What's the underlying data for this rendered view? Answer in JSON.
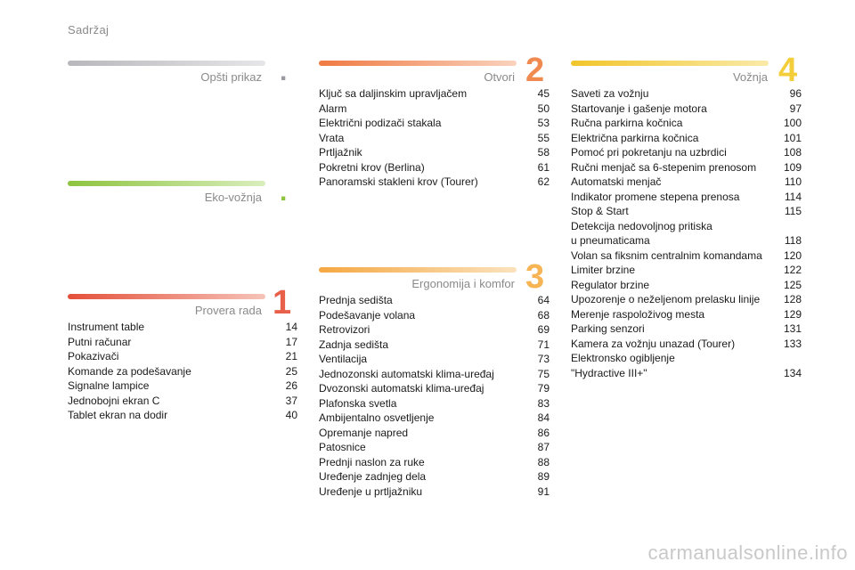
{
  "header": {
    "title": "Sadržaj"
  },
  "sections": {
    "opsti": {
      "title": "Opšti prikaz",
      "marker": "."
    },
    "eko": {
      "title": "Eko-vožnja",
      "marker": "."
    },
    "provera": {
      "title": "Provera rada",
      "number": "1",
      "items": [
        {
          "t": "Instrument table",
          "p": "14"
        },
        {
          "t": "Putni računar",
          "p": "17"
        },
        {
          "t": "Pokazivači",
          "p": "21"
        },
        {
          "t": "Komande za podešavanje",
          "p": "25"
        },
        {
          "t": "Signalne lampice",
          "p": "26"
        },
        {
          "t": "Jednobojni ekran C",
          "p": "37"
        },
        {
          "t": "Tablet ekran na dodir",
          "p": "40"
        }
      ]
    },
    "otvori": {
      "title": "Otvori",
      "number": "2",
      "items": [
        {
          "t": "Ključ sa daljinskim upravljačem",
          "p": "45"
        },
        {
          "t": "Alarm",
          "p": "50"
        },
        {
          "t": "Električni podizači stakala",
          "p": "53"
        },
        {
          "t": "Vrata",
          "p": "55"
        },
        {
          "t": "Prtljažnik",
          "p": "58"
        },
        {
          "t": "Pokretni krov (Berlina)",
          "p": "61"
        },
        {
          "t": "Panoramski stakleni krov (Tourer)",
          "p": "62"
        }
      ]
    },
    "ergonomija": {
      "title": "Ergonomija i komfor",
      "number": "3",
      "items": [
        {
          "t": "Prednja sedišta",
          "p": "64"
        },
        {
          "t": "Podešavanje volana",
          "p": "68"
        },
        {
          "t": "Retrovizori",
          "p": "69"
        },
        {
          "t": "Zadnja sedišta",
          "p": "71"
        },
        {
          "t": "Ventilacija",
          "p": "73"
        },
        {
          "t": "Jednozonski automatski klima-uređaj",
          "p": "75"
        },
        {
          "t": "Dvozonski automatski klima-uređaj",
          "p": "79"
        },
        {
          "t": "Plafonska svetla",
          "p": "83"
        },
        {
          "t": "Ambijentalno osvetljenje",
          "p": "84"
        },
        {
          "t": "Opremanje napred",
          "p": "86"
        },
        {
          "t": "Patosnice",
          "p": "87"
        },
        {
          "t": "Prednji naslon za ruke",
          "p": "88"
        },
        {
          "t": "Uređenje zadnjeg dela",
          "p": "89"
        },
        {
          "t": "Uređenje u prtljažniku",
          "p": "91"
        }
      ]
    },
    "voznja": {
      "title": "Vožnja",
      "number": "4",
      "items": [
        {
          "t": "Saveti za vožnju",
          "p": "96"
        },
        {
          "t": "Startovanje i gašenje motora",
          "p": "97"
        },
        {
          "t": "Ručna parkirna kočnica",
          "p": "100"
        },
        {
          "t": "Električna parkirna kočnica",
          "p": "101"
        },
        {
          "t": "Pomoć pri pokretanju na uzbrdici",
          "p": "108"
        },
        {
          "t": "Ručni menjač sa 6-stepenim prenosom",
          "p": "109"
        },
        {
          "t": "Automatski menjač",
          "p": "110"
        },
        {
          "t": "Indikator promene stepena prenosa",
          "p": "114"
        },
        {
          "t": "Stop & Start",
          "p": "115"
        },
        {
          "t": "Detekcija nedovoljnog pritiska\nu pneumaticama",
          "p": "118"
        },
        {
          "t": "Volan sa fiksnim centralnim komandama",
          "p": "120"
        },
        {
          "t": "Limiter brzine",
          "p": "122"
        },
        {
          "t": "Regulator brzine",
          "p": "125"
        },
        {
          "t": "Upozorenje o neželjenom prelasku linije",
          "p": "128"
        },
        {
          "t": "Merenje raspoloživog mesta",
          "p": "129"
        },
        {
          "t": "Parking senzori",
          "p": "131"
        },
        {
          "t": "Kamera za vožnju unazad (Tourer)",
          "p": "133"
        },
        {
          "t": "Elektronsko ogibljenje\n\"Hydractive III+\"",
          "p": "134"
        }
      ]
    }
  },
  "footer": {
    "watermark": "carmanualsonline.info"
  },
  "colors": {
    "opsti": "#c4c4c8",
    "eko": "#9ccc55",
    "provera": "#e8604a",
    "otvori": "#f08a50",
    "ergonomija": "#f6b455",
    "voznja": "#f3cd3a"
  }
}
